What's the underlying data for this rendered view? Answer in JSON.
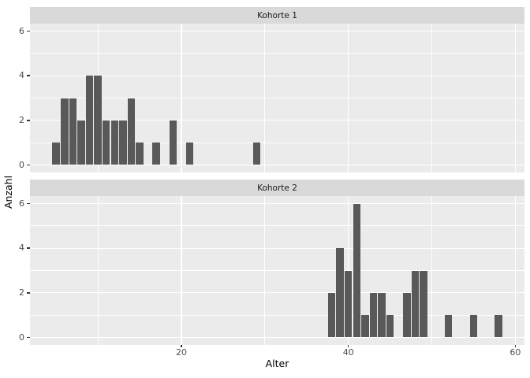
{
  "chart_data": {
    "type": "bar",
    "variant": "faceted-histogram",
    "xlabel": "Alter",
    "ylabel": "Anzahl",
    "x_ticks": [
      20,
      40,
      60
    ],
    "x_minor_gridlines": [
      10,
      30,
      50
    ],
    "y_ticks": [
      0,
      2,
      4,
      6
    ],
    "y_minor_gridlines": [
      1,
      3,
      5
    ],
    "xlim": [
      1.9,
      61.1
    ],
    "ylim": [
      0,
      6.3
    ],
    "binwidth": 1,
    "grid": "on",
    "legend": "none",
    "facets": [
      {
        "label": "Kohorte 1",
        "bins": [
          5,
          6,
          7,
          8,
          9,
          10,
          11,
          12,
          13,
          14,
          15,
          17,
          19,
          21,
          29
        ],
        "counts": [
          1,
          3,
          3,
          2,
          4,
          4,
          2,
          2,
          2,
          3,
          1,
          1,
          2,
          1,
          1
        ]
      },
      {
        "label": "Kohorte 2",
        "bins": [
          38,
          39,
          40,
          41,
          42,
          43,
          44,
          45,
          47,
          48,
          49,
          52,
          55,
          58
        ],
        "counts": [
          2,
          4,
          3,
          6,
          1,
          2,
          2,
          1,
          2,
          3,
          3,
          1,
          1,
          1
        ]
      }
    ],
    "colors": {
      "bar": "#595959",
      "panel_background": "#EBEBEB",
      "strip_background": "#D9D9D9",
      "strip_text": "#1A1A1A",
      "gridline": "#FFFFFF",
      "tick_label": "#4D4D4D",
      "axis_title": "#000000",
      "figure_background": "#FFFFFF"
    }
  }
}
